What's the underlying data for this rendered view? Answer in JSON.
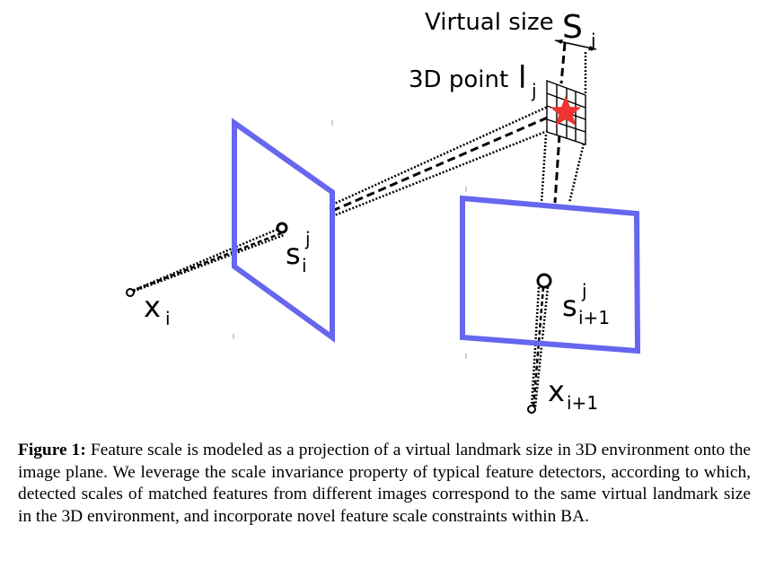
{
  "figure": {
    "labels": {
      "virtual_size": "Virtual size",
      "virtual_size_symbol": "S",
      "virtual_size_sub": "j",
      "point": "3D point",
      "point_symbol": "l",
      "point_sub": "j",
      "cam_i_x": "x",
      "cam_i_x_sub": "i",
      "cam_i_s": "s",
      "cam_i_s_sup": "j",
      "cam_i_s_sub": "i",
      "cam_i1_x": "x",
      "cam_i1_x_sub": "i+1",
      "cam_i1_s": "s",
      "cam_i1_s_sup": "j",
      "cam_i1_s_sub": "i+1"
    },
    "colors": {
      "image_plane": "#6666ee",
      "star": "#ee3333",
      "lines": "#000000"
    },
    "icons": {
      "landmark": "star-icon"
    }
  },
  "caption": {
    "label": "Figure 1:",
    "text": "Feature scale is modeled as a projection of a virtual landmark size in 3D environment onto the image plane. We leverage the scale invariance property of typical feature detectors, according to which, detected scales of matched features from different images correspond to the same virtual landmark size in the 3D environment, and incorporate novel feature scale constraints within BA."
  }
}
